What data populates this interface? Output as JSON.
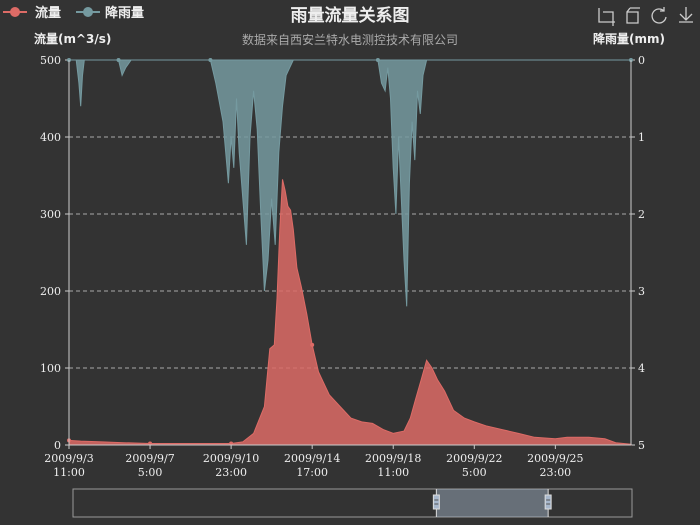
{
  "chart_data": {
    "type": "area",
    "title": "雨量流量关系图",
    "subtitle": "数据来自西安兰特水电测控技术有限公司",
    "legend": [
      "流量",
      "降雨量"
    ],
    "legend_position": "top-left",
    "colors": {
      "flow": "#dd6b66",
      "rain": "#759aa0",
      "background": "#333333"
    },
    "toolbox_icons": [
      "zoom-icon",
      "zoom-reset-icon",
      "restore-icon",
      "save-image-icon"
    ],
    "y_left": {
      "name": "流量(m^3/s)",
      "min": 0,
      "max": 500,
      "ticks": [
        "0",
        "100",
        "200",
        "300",
        "400",
        "500"
      ]
    },
    "y_right": {
      "name": "降雨量(mm)",
      "min": 0,
      "max": 5,
      "inverse": true,
      "ticks": [
        "0",
        "1",
        "2",
        "3",
        "4",
        "5"
      ]
    },
    "x_ticks": [
      [
        "2009/9/3",
        "11:00"
      ],
      [
        "2009/9/7",
        "5:00"
      ],
      [
        "2009/9/10",
        "23:00"
      ],
      [
        "2009/9/14",
        "17:00"
      ],
      [
        "2009/9/18",
        "11:00"
      ],
      [
        "2009/9/22",
        "5:00"
      ],
      [
        "2009/9/25",
        "23:00"
      ]
    ],
    "x_range": [
      "2009/9/3 11:00",
      "2009/9/29 11:00"
    ],
    "grid_lines": "dashed",
    "dataZoom_range_percent": [
      65,
      85
    ],
    "series": [
      {
        "name": "流量",
        "unit": "m^3/s",
        "axis": "left",
        "points": [
          [
            "2009/9/3 11:00",
            6
          ],
          [
            "2009/9/4 00:00",
            5
          ],
          [
            "2009/9/5 00:00",
            4
          ],
          [
            "2009/9/6 00:00",
            3
          ],
          [
            "2009/9/7 05:00",
            2
          ],
          [
            "2009/9/8 12:00",
            2
          ],
          [
            "2009/9/10 00:00",
            2
          ],
          [
            "2009/9/10 23:00",
            2
          ],
          [
            "2009/9/11 12:00",
            4
          ],
          [
            "2009/9/12 00:00",
            15
          ],
          [
            "2009/9/12 12:00",
            50
          ],
          [
            "2009/9/12 18:00",
            125
          ],
          [
            "2009/9/12 23:00",
            130
          ],
          [
            "2009/9/13 02:00",
            190
          ],
          [
            "2009/9/13 05:00",
            280
          ],
          [
            "2009/9/13 08:00",
            345
          ],
          [
            "2009/9/13 11:00",
            330
          ],
          [
            "2009/9/13 14:00",
            310
          ],
          [
            "2009/9/13 17:00",
            305
          ],
          [
            "2009/9/13 20:00",
            280
          ],
          [
            "2009/9/14 00:00",
            230
          ],
          [
            "2009/9/14 05:00",
            205
          ],
          [
            "2009/9/14 11:00",
            170
          ],
          [
            "2009/9/14 17:00",
            130
          ],
          [
            "2009/9/15 00:00",
            95
          ],
          [
            "2009/9/15 12:00",
            65
          ],
          [
            "2009/9/16 00:00",
            50
          ],
          [
            "2009/9/16 12:00",
            35
          ],
          [
            "2009/9/17 00:00",
            30
          ],
          [
            "2009/9/17 12:00",
            28
          ],
          [
            "2009/9/18 00:00",
            20
          ],
          [
            "2009/9/18 11:00",
            15
          ],
          [
            "2009/9/18 23:00",
            18
          ],
          [
            "2009/9/19 06:00",
            35
          ],
          [
            "2009/9/19 12:00",
            60
          ],
          [
            "2009/9/19 18:00",
            85
          ],
          [
            "2009/9/20 00:00",
            110
          ],
          [
            "2009/9/20 06:00",
            100
          ],
          [
            "2009/9/20 12:00",
            85
          ],
          [
            "2009/9/20 20:00",
            70
          ],
          [
            "2009/9/21 06:00",
            45
          ],
          [
            "2009/9/21 18:00",
            35
          ],
          [
            "2009/9/22 05:00",
            30
          ],
          [
            "2009/9/22 18:00",
            25
          ],
          [
            "2009/9/23 12:00",
            20
          ],
          [
            "2009/9/24 06:00",
            15
          ],
          [
            "2009/9/25 00:00",
            10
          ],
          [
            "2009/9/25 23:00",
            8
          ],
          [
            "2009/9/26 12:00",
            10
          ],
          [
            "2009/9/27 12:00",
            10
          ],
          [
            "2009/9/28 06:00",
            8
          ],
          [
            "2009/9/28 18:00",
            3
          ],
          [
            "2009/9/29 11:00",
            1
          ]
        ]
      },
      {
        "name": "降雨量",
        "unit": "mm",
        "axis": "right",
        "points": [
          [
            "2009/9/3 11:00",
            0
          ],
          [
            "2009/9/3 19:00",
            0
          ],
          [
            "2009/9/3 22:00",
            0.3
          ],
          [
            "2009/9/4 00:00",
            0.6
          ],
          [
            "2009/9/4 02:00",
            0.2
          ],
          [
            "2009/9/4 04:00",
            0
          ],
          [
            "2009/9/5 18:00",
            0
          ],
          [
            "2009/9/5 22:00",
            0.2
          ],
          [
            "2009/9/6 02:00",
            0.1
          ],
          [
            "2009/9/6 08:00",
            0
          ],
          [
            "2009/9/10 00:00",
            0
          ],
          [
            "2009/9/10 06:00",
            0.3
          ],
          [
            "2009/9/10 14:00",
            0.8
          ],
          [
            "2009/9/10 20:00",
            1.6
          ],
          [
            "2009/9/10 23:00",
            1.0
          ],
          [
            "2009/9/11 02:00",
            1.4
          ],
          [
            "2009/9/11 05:00",
            0.5
          ],
          [
            "2009/9/11 08:00",
            1.2
          ],
          [
            "2009/9/11 12:00",
            1.8
          ],
          [
            "2009/9/11 16:00",
            2.4
          ],
          [
            "2009/9/11 20:00",
            1.0
          ],
          [
            "2009/9/12 00:00",
            0.4
          ],
          [
            "2009/9/12 04:00",
            0.9
          ],
          [
            "2009/9/12 08:00",
            2.0
          ],
          [
            "2009/9/12 12:00",
            3.0
          ],
          [
            "2009/9/12 16:00",
            2.6
          ],
          [
            "2009/9/12 20:00",
            1.8
          ],
          [
            "2009/9/13 00:00",
            2.4
          ],
          [
            "2009/9/13 04:00",
            1.2
          ],
          [
            "2009/9/13 08:00",
            0.6
          ],
          [
            "2009/9/13 12:00",
            0.2
          ],
          [
            "2009/9/13 16:00",
            0.1
          ],
          [
            "2009/9/13 20:00",
            0
          ],
          [
            "2009/9/17 18:00",
            0
          ],
          [
            "2009/9/17 22:00",
            0.3
          ],
          [
            "2009/9/18 02:00",
            0.4
          ],
          [
            "2009/9/18 05:00",
            0.1
          ],
          [
            "2009/9/18 08:00",
            0.5
          ],
          [
            "2009/9/18 11:00",
            1.4
          ],
          [
            "2009/9/18 14:00",
            2.0
          ],
          [
            "2009/9/18 17:00",
            1.0
          ],
          [
            "2009/9/18 20:00",
            1.8
          ],
          [
            "2009/9/18 23:00",
            2.6
          ],
          [
            "2009/9/19 02:00",
            3.2
          ],
          [
            "2009/9/19 05:00",
            1.6
          ],
          [
            "2009/9/19 08:00",
            0.8
          ],
          [
            "2009/9/19 11:00",
            1.3
          ],
          [
            "2009/9/19 14:00",
            0.4
          ],
          [
            "2009/9/19 17:00",
            0.7
          ],
          [
            "2009/9/19 20:00",
            0.2
          ],
          [
            "2009/9/20 00:00",
            0
          ],
          [
            "2009/9/29 11:00",
            0
          ]
        ]
      }
    ]
  }
}
